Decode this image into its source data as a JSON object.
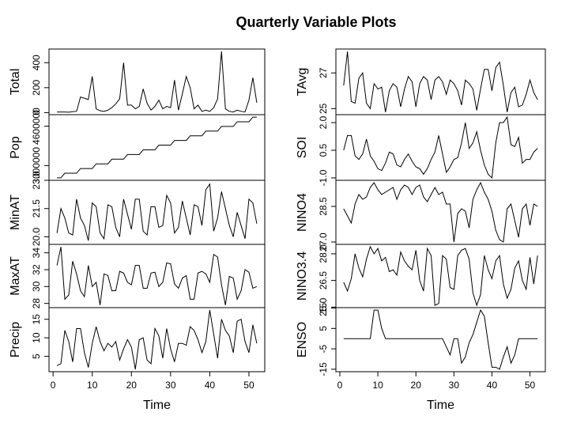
{
  "title": "Quarterly Variable Plots",
  "chart_data": [
    {
      "type": "line",
      "ylabel": "Total",
      "color": "#000000",
      "x": [
        1,
        2,
        3,
        4,
        5,
        6,
        7,
        8,
        9,
        10,
        11,
        12,
        13,
        14,
        15,
        16,
        17,
        18,
        19,
        20,
        21,
        22,
        23,
        24,
        25,
        26,
        27,
        28,
        29,
        30,
        31,
        32,
        33,
        34,
        35,
        36,
        37,
        38,
        39,
        40,
        41,
        42,
        43,
        44,
        45,
        46,
        47,
        48,
        49,
        50,
        51,
        52
      ],
      "values": [
        5,
        5,
        5,
        3,
        8,
        10,
        125,
        115,
        105,
        290,
        30,
        15,
        10,
        20,
        40,
        70,
        110,
        400,
        60,
        60,
        30,
        50,
        190,
        75,
        20,
        50,
        100,
        30,
        50,
        40,
        260,
        20,
        150,
        290,
        200,
        30,
        60,
        10,
        20,
        10,
        40,
        110,
        490,
        30,
        10,
        5,
        20,
        10,
        5,
        100,
        280,
        80
      ],
      "xlim": [
        -1.04,
        54.04
      ],
      "ylim": [
        -16.5,
        509.5
      ],
      "yticks": [
        0,
        200,
        400
      ]
    },
    {
      "type": "line",
      "ylabel": "Pop",
      "color": "#000000",
      "x": [
        1,
        2,
        3,
        4,
        5,
        6,
        7,
        8,
        9,
        10,
        11,
        12,
        13,
        14,
        15,
        16,
        17,
        18,
        19,
        20,
        21,
        22,
        23,
        24,
        25,
        26,
        27,
        28,
        29,
        30,
        31,
        32,
        33,
        34,
        35,
        36,
        37,
        38,
        39,
        40,
        41,
        42,
        43,
        44,
        45,
        46,
        47,
        48,
        49,
        50,
        51,
        52
      ],
      "values": [
        2500000,
        2500000,
        2690000,
        2690000,
        2690000,
        2690000,
        2880000,
        2880000,
        2880000,
        2880000,
        3070000,
        3070000,
        3070000,
        3070000,
        3260000,
        3260000,
        3260000,
        3260000,
        3450000,
        3450000,
        3450000,
        3450000,
        3640000,
        3640000,
        3640000,
        3640000,
        3830000,
        3830000,
        3830000,
        3830000,
        4020000,
        4020000,
        4020000,
        4020000,
        4210000,
        4210000,
        4210000,
        4210000,
        4400000,
        4400000,
        4400000,
        4400000,
        4590000,
        4590000,
        4590000,
        4590000,
        4780000,
        4780000,
        4780000,
        4780000,
        4970000,
        4970000
      ],
      "xlim": [
        -1.04,
        54.04
      ],
      "ylim": [
        2401200,
        5068800
      ],
      "yticks": [
        3000000,
        4600000
      ]
    },
    {
      "type": "line",
      "ylabel": "MinAT",
      "color": "#000000",
      "x": [
        1,
        2,
        3,
        4,
        5,
        6,
        7,
        8,
        9,
        10,
        11,
        12,
        13,
        14,
        15,
        16,
        17,
        18,
        19,
        20,
        21,
        22,
        23,
        24,
        25,
        26,
        27,
        28,
        29,
        30,
        31,
        32,
        33,
        34,
        35,
        36,
        37,
        38,
        39,
        40,
        41,
        42,
        43,
        44,
        45,
        46,
        47,
        48,
        49,
        50,
        51,
        52
      ],
      "values": [
        20.2,
        21.5,
        21.0,
        20.2,
        20.1,
        22.0,
        21.0,
        20.6,
        19.8,
        21.8,
        21.6,
        20.2,
        19.9,
        21.7,
        21.6,
        20.5,
        20.0,
        22.0,
        21.2,
        20.4,
        22.0,
        22.0,
        20.3,
        20.1,
        21.6,
        21.6,
        20.5,
        20.6,
        22.2,
        21.8,
        20.2,
        20.5,
        21.9,
        21.0,
        20.1,
        21.7,
        21.6,
        20.6,
        22.5,
        22.8,
        20.3,
        21.0,
        22.4,
        21.5,
        20.6,
        20.0,
        21.3,
        20.6,
        19.9,
        22.0,
        21.8,
        20.7
      ],
      "xlim": [
        -1.04,
        54.04
      ],
      "ylim": [
        19.6,
        23.0
      ],
      "yticks": [
        {
          "value": 20,
          "label": "20.0"
        },
        21.5,
        {
          "value": 23,
          "label": "23.0"
        }
      ]
    },
    {
      "type": "line",
      "ylabel": "MaxAT",
      "color": "#000000",
      "x": [
        1,
        2,
        3,
        4,
        5,
        6,
        7,
        8,
        9,
        10,
        11,
        12,
        13,
        14,
        15,
        16,
        17,
        18,
        19,
        20,
        21,
        22,
        23,
        24,
        25,
        26,
        27,
        28,
        29,
        30,
        31,
        32,
        33,
        34,
        35,
        36,
        37,
        38,
        39,
        40,
        41,
        42,
        43,
        44,
        45,
        46,
        47,
        48,
        49,
        50,
        51,
        52
      ],
      "values": [
        32.5,
        34.7,
        28.5,
        29.0,
        33.0,
        31.5,
        29.5,
        28.8,
        32.5,
        30.0,
        30.5,
        27.8,
        31.5,
        31.3,
        29.5,
        29.5,
        31.8,
        31.6,
        30.5,
        30.2,
        32.5,
        32.5,
        29.8,
        29.8,
        31.6,
        31.7,
        30.0,
        30.5,
        32.8,
        32.7,
        30.3,
        29.8,
        31.0,
        31.3,
        28.5,
        28.5,
        31.6,
        31.8,
        31.5,
        30.5,
        33.8,
        33.5,
        30.2,
        27.8,
        31.2,
        31.0,
        28.5,
        29.5,
        32.0,
        31.7,
        29.8,
        30.0
      ],
      "xlim": [
        -1.04,
        54.04
      ],
      "ylim": [
        27.5,
        35.0
      ],
      "yticks": [
        28,
        30,
        32,
        34
      ]
    },
    {
      "type": "line",
      "ylabel": "Precip",
      "color": "#000000",
      "xlabel": "Time",
      "x": [
        1,
        2,
        3,
        4,
        5,
        6,
        7,
        8,
        9,
        10,
        11,
        12,
        13,
        14,
        15,
        16,
        17,
        18,
        19,
        20,
        21,
        22,
        23,
        24,
        25,
        26,
        27,
        28,
        29,
        30,
        31,
        32,
        33,
        34,
        35,
        36,
        37,
        38,
        39,
        40,
        41,
        42,
        43,
        44,
        45,
        46,
        47,
        48,
        49,
        50,
        51,
        52
      ],
      "values": [
        2.5,
        3.0,
        12.0,
        9.0,
        3.5,
        12.5,
        12.5,
        6.0,
        2.0,
        8.5,
        13.0,
        9.0,
        6.5,
        8.5,
        7.5,
        9.0,
        4.0,
        7.0,
        9.5,
        7.5,
        1.5,
        9.5,
        10.0,
        4.0,
        3.0,
        12.5,
        10.5,
        4.5,
        12.5,
        7.0,
        3.5,
        8.5,
        8.5,
        8.0,
        13.0,
        12.0,
        9.5,
        6.0,
        9.0,
        17.5,
        11.0,
        4.5,
        15.0,
        12.0,
        10.5,
        6.0,
        14.5,
        15.0,
        9.0,
        6.0,
        13.5,
        8.5
      ],
      "xlim": [
        -1.04,
        54.04
      ],
      "xticks": [
        0,
        10,
        20,
        30,
        40,
        50
      ],
      "ylim": [
        0.86,
        18.14
      ],
      "yticks": [
        5,
        10,
        15
      ]
    },
    {
      "type": "line",
      "ylabel": "TAvg",
      "color": "#000000",
      "x": [
        1,
        2,
        3,
        4,
        5,
        6,
        7,
        8,
        9,
        10,
        11,
        12,
        13,
        14,
        15,
        16,
        17,
        18,
        19,
        20,
        21,
        22,
        23,
        24,
        25,
        26,
        27,
        28,
        29,
        30,
        31,
        32,
        33,
        34,
        35,
        36,
        37,
        38,
        39,
        40,
        41,
        42,
        43,
        44,
        45,
        46,
        47,
        48,
        49,
        50,
        51,
        52
      ],
      "values": [
        26.3,
        28.2,
        25.4,
        25.3,
        26.7,
        27.0,
        25.3,
        25.0,
        26.4,
        26.1,
        26.2,
        24.8,
        26.0,
        26.4,
        26.2,
        25.1,
        26.1,
        26.8,
        26.5,
        25.1,
        26.4,
        26.8,
        26.6,
        25.5,
        26.6,
        26.8,
        26.5,
        25.8,
        26.6,
        26.4,
        26.0,
        25.2,
        26.6,
        26.4,
        26.1,
        24.9,
        26.1,
        27.2,
        27.2,
        26.0,
        27.3,
        27.6,
        26.3,
        24.8,
        25.9,
        26.2,
        25.1,
        25.2,
        25.8,
        26.6,
        25.9,
        25.5
      ],
      "xlim": [
        -1.04,
        54.04
      ],
      "ylim": [
        24.66,
        28.34
      ],
      "yticks": [
        25,
        27
      ]
    },
    {
      "type": "line",
      "ylabel": "SOI",
      "color": "#000000",
      "x": [
        1,
        2,
        3,
        4,
        5,
        6,
        7,
        8,
        9,
        10,
        11,
        12,
        13,
        14,
        15,
        16,
        17,
        18,
        19,
        20,
        21,
        22,
        23,
        24,
        25,
        26,
        27,
        28,
        29,
        30,
        31,
        32,
        33,
        34,
        35,
        36,
        37,
        38,
        39,
        40,
        41,
        42,
        43,
        44,
        45,
        46,
        47,
        48,
        49,
        50,
        51,
        52
      ],
      "values": [
        0.5,
        1.3,
        1.3,
        0.2,
        0.0,
        0.3,
        1.1,
        0.2,
        -0.1,
        -0.5,
        -0.6,
        -0.2,
        0.4,
        0.3,
        -0.3,
        -0.4,
        0.0,
        0.3,
        -0.1,
        -0.4,
        -0.5,
        -0.8,
        -0.5,
        0.0,
        0.4,
        1.3,
        0.3,
        -0.7,
        -0.4,
        0.0,
        0.1,
        0.9,
        2.0,
        0.6,
        0.9,
        1.5,
        0.5,
        -0.3,
        -0.8,
        -1.0,
        0.9,
        2.0,
        2.0,
        2.3,
        0.8,
        0.7,
        1.2,
        -0.2,
        0.0,
        0.0,
        0.4,
        0.6
      ],
      "xlim": [
        -1.04,
        54.04
      ],
      "ylim": [
        -1.13,
        2.43
      ],
      "yticks": [
        {
          "value": -1,
          "label": "-1.0"
        },
        0.5,
        {
          "value": 2,
          "label": "2.0"
        }
      ]
    },
    {
      "type": "line",
      "ylabel": "NINO4",
      "color": "#000000",
      "x": [
        1,
        2,
        3,
        4,
        5,
        6,
        7,
        8,
        9,
        10,
        11,
        12,
        13,
        14,
        15,
        16,
        17,
        18,
        19,
        20,
        21,
        22,
        23,
        24,
        25,
        26,
        27,
        28,
        29,
        30,
        31,
        32,
        33,
        34,
        35,
        36,
        37,
        38,
        39,
        40,
        41,
        42,
        43,
        44,
        45,
        46,
        47,
        48,
        49,
        50,
        51,
        52
      ],
      "values": [
        28.4,
        28.1,
        27.8,
        28.6,
        29.0,
        28.8,
        28.9,
        29.3,
        29.5,
        29.2,
        29.0,
        29.1,
        29.2,
        29.3,
        28.8,
        29.2,
        29.4,
        29.3,
        29.0,
        29.3,
        29.4,
        28.9,
        28.7,
        29.0,
        29.3,
        29.0,
        29.1,
        28.6,
        28.6,
        27.0,
        28.2,
        28.4,
        28.3,
        27.6,
        28.8,
        29.2,
        29.5,
        29.1,
        28.8,
        28.3,
        27.5,
        27.1,
        27.0,
        28.4,
        28.6,
        27.9,
        27.2,
        28.4,
        28.6,
        27.7,
        28.6,
        28.5
      ],
      "xlim": [
        -1.04,
        54.04
      ],
      "ylim": [
        26.9,
        29.6
      ],
      "yticks": [
        {
          "value": 27,
          "label": "27.0"
        },
        28.5
      ]
    },
    {
      "type": "line",
      "ylabel": "NINO3.4",
      "color": "#000000",
      "x": [
        1,
        2,
        3,
        4,
        5,
        6,
        7,
        8,
        9,
        10,
        11,
        12,
        13,
        14,
        15,
        16,
        17,
        18,
        19,
        20,
        21,
        22,
        23,
        24,
        25,
        26,
        27,
        28,
        29,
        30,
        31,
        32,
        33,
        34,
        35,
        36,
        37,
        38,
        39,
        40,
        41,
        42,
        43,
        44,
        45,
        46,
        47,
        48,
        49,
        50,
        51,
        52
      ],
      "values": [
        26.4,
        25.9,
        26.6,
        28.0,
        27.2,
        26.7,
        27.7,
        28.4,
        28.0,
        28.3,
        27.6,
        27.8,
        27.0,
        27.1,
        26.8,
        28.1,
        27.6,
        27.3,
        27.1,
        28.2,
        26.5,
        25.9,
        28.3,
        27.9,
        25.1,
        25.2,
        27.9,
        27.7,
        26.1,
        26.0,
        27.9,
        28.2,
        28.3,
        27.7,
        25.8,
        25.1,
        25.7,
        27.9,
        27.1,
        26.6,
        27.6,
        27.9,
        26.3,
        25.5,
        26.0,
        27.2,
        27.6,
        26.5,
        26.0,
        27.8,
        26.3,
        27.9
      ],
      "xlim": [
        -1.04,
        54.04
      ],
      "ylim": [
        24.97,
        28.53
      ],
      "yticks": [
        {
          "value": 25,
          "label": "25.0"
        },
        26.5,
        {
          "value": 28,
          "label": "28.0"
        }
      ]
    },
    {
      "type": "line",
      "ylabel": "ENSO",
      "color": "#000000",
      "xlabel": "Time",
      "x": [
        1,
        2,
        3,
        4,
        5,
        6,
        7,
        8,
        9,
        10,
        11,
        12,
        13,
        14,
        15,
        16,
        17,
        18,
        19,
        20,
        21,
        22,
        23,
        24,
        25,
        26,
        27,
        28,
        29,
        30,
        31,
        32,
        33,
        34,
        35,
        36,
        37,
        38,
        39,
        40,
        41,
        42,
        43,
        44,
        45,
        46,
        47,
        48,
        49,
        50,
        51,
        52
      ],
      "values": [
        0,
        0,
        0,
        0,
        0,
        0,
        0,
        0,
        14,
        14,
        5,
        0,
        0,
        0,
        0,
        0,
        0,
        0,
        0,
        0,
        0,
        0,
        0,
        0,
        0,
        0,
        0,
        -4,
        -8,
        0,
        0,
        -12,
        -9,
        -2,
        2,
        8,
        14,
        11,
        -2,
        -14,
        -14,
        -15,
        -9,
        -4,
        -12,
        -8,
        0,
        0,
        0,
        0,
        0,
        0
      ],
      "xlim": [
        -1.04,
        54.04
      ],
      "xticks": [
        0,
        10,
        20,
        30,
        40,
        50
      ],
      "ylim": [
        -16.2,
        15.2
      ],
      "yticks": [
        15,
        5,
        -5,
        -15
      ]
    }
  ]
}
